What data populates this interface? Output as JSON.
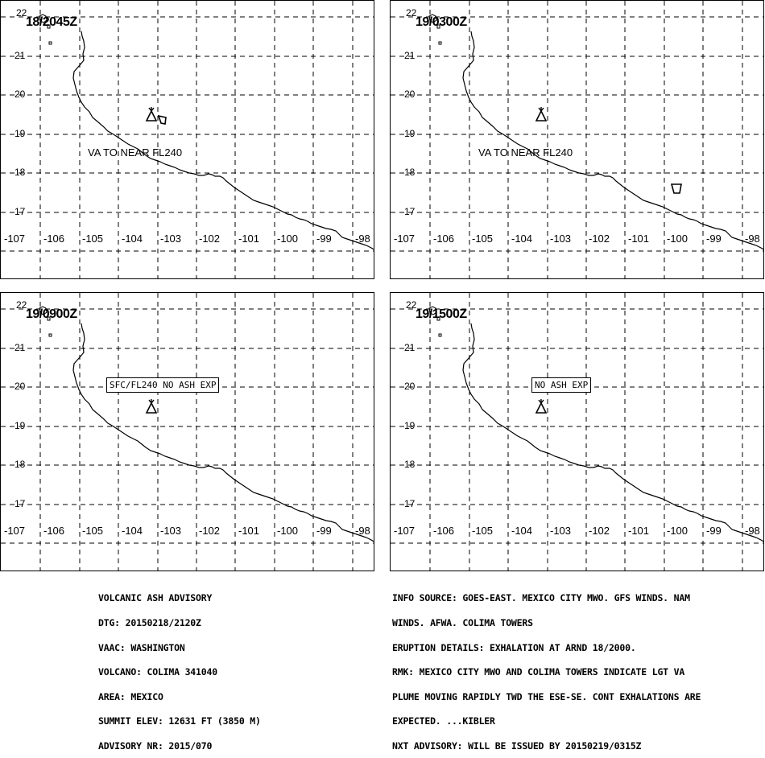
{
  "panels": [
    {
      "time": "18/2045Z",
      "va_label": "VA TO NEAR FL240",
      "box": ""
    },
    {
      "time": "19/0300Z",
      "va_label": "VA TO NEAR FL240",
      "box": ""
    },
    {
      "time": "19/0900Z",
      "va_label": "",
      "box": "SFC/FL240 NO ASH EXP"
    },
    {
      "time": "19/1500Z",
      "va_label": "",
      "box": "NO ASH EXP"
    }
  ],
  "lat_labels": [
    "22",
    "21",
    "20",
    "19",
    "18",
    "17"
  ],
  "lon_labels": [
    "-107",
    "-106",
    "-105",
    "-104",
    "-103",
    "-102",
    "-101",
    "-100",
    "-99",
    "-98"
  ],
  "advisory_left": [
    "VOLCANIC ASH ADVISORY",
    "DTG: 20150218/2120Z",
    "VAAC: WASHINGTON",
    "VOLCANO: COLIMA 341040",
    "AREA: MEXICO",
    "SUMMIT ELEV: 12631 FT (3850 M)",
    "ADVISORY NR: 2015/070"
  ],
  "advisory_right": [
    "INFO SOURCE: GOES-EAST. MEXICO CITY MWO. GFS WINDS. NAM",
    "WINDS. AFWA. COLIMA TOWERS",
    "ERUPTION DETAILS: EXHALATION AT ARND 18/2000.",
    "RMK: MEXICO CITY MWO AND COLIMA TOWERS INDICATE LGT VA",
    "PLUME MOVING RAPIDLY TWD THE ESE-SE. CONT EXHALATIONS ARE",
    "EXPECTED. ...KIBLER",
    "NXT ADVISORY: WILL BE ISSUED BY 20150219/0315Z"
  ]
}
